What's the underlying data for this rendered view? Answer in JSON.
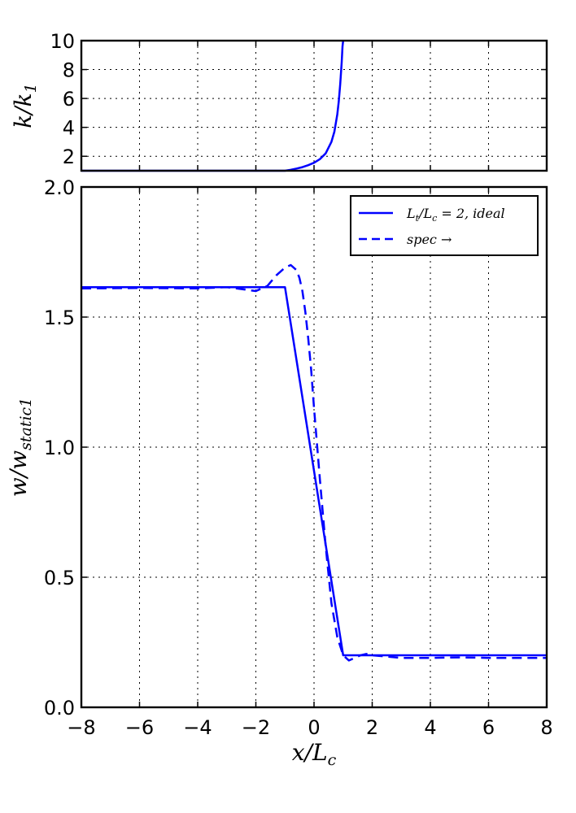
{
  "chart_data": [
    {
      "type": "line",
      "title": "",
      "xlabel": "",
      "ylabel": "k/k₁",
      "xlim": [
        -8,
        8
      ],
      "ylim": [
        1,
        10
      ],
      "xticks": [
        -8,
        -6,
        -4,
        -2,
        0,
        2,
        4,
        6,
        8
      ],
      "yticks": [
        2,
        4,
        6,
        8,
        10
      ],
      "grid": true,
      "series": [
        {
          "style": "solid",
          "color": "#0000ff",
          "x": [
            -8,
            -1.0,
            -0.8,
            -0.6,
            -0.4,
            -0.2,
            0.0,
            0.2,
            0.4,
            0.6,
            0.7,
            0.8,
            0.85,
            0.9,
            0.95,
            0.98,
            1.0
          ],
          "y": [
            1,
            1.0,
            1.07,
            1.15,
            1.25,
            1.38,
            1.55,
            1.8,
            2.2,
            3.0,
            3.7,
            4.9,
            5.8,
            7.0,
            8.5,
            9.6,
            10
          ]
        }
      ]
    },
    {
      "type": "line",
      "title": "",
      "xlabel": "x/L_c",
      "ylabel": "w/w_static1",
      "xlim": [
        -8,
        8
      ],
      "ylim": [
        0,
        2
      ],
      "xticks": [
        -8,
        -6,
        -4,
        -2,
        0,
        2,
        4,
        6,
        8
      ],
      "xtick_labels": [
        "−8",
        "−6",
        "−4",
        "−2",
        "0",
        "2",
        "4",
        "6",
        "8"
      ],
      "yticks": [
        0,
        0.5,
        1,
        1.5,
        2
      ],
      "ytick_labels": [
        "0.0",
        "0.5",
        "1.0",
        "1.5",
        "2.0"
      ],
      "grid": true,
      "legend_position": "top-right",
      "series": [
        {
          "name": "L_t/L_c = 2, ideal",
          "style": "solid",
          "color": "#0000ff",
          "x": [
            -8,
            -1,
            1,
            8
          ],
          "y": [
            1.615,
            1.615,
            0.2,
            0.2
          ]
        },
        {
          "name": "spec →",
          "style": "dashed",
          "color": "#0000ff",
          "x": [
            -8,
            -6,
            -4,
            -3,
            -2,
            -1.6,
            -1.3,
            -1.0,
            -0.8,
            -0.6,
            -0.5,
            -0.4,
            -0.3,
            -0.2,
            -0.1,
            0.0,
            0.2,
            0.4,
            0.6,
            0.8,
            1.0,
            1.2,
            1.4,
            1.6,
            1.8,
            2.0,
            2.5,
            3.0,
            4.0,
            5.0,
            6.0,
            7.0,
            8.0
          ],
          "y": [
            1.61,
            1.612,
            1.61,
            1.615,
            1.6,
            1.62,
            1.66,
            1.69,
            1.7,
            1.68,
            1.65,
            1.6,
            1.52,
            1.42,
            1.3,
            1.15,
            0.88,
            0.62,
            0.4,
            0.27,
            0.2,
            0.18,
            0.19,
            0.2,
            0.205,
            0.2,
            0.195,
            0.19,
            0.19,
            0.192,
            0.19,
            0.19,
            0.19
          ]
        }
      ]
    }
  ]
}
